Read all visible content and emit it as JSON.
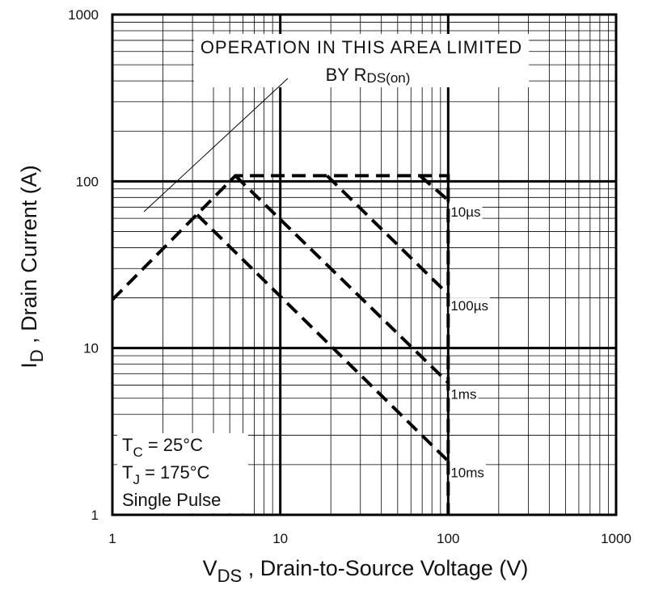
{
  "chart_data": {
    "type": "line",
    "log_x": true,
    "log_y": true,
    "grid": true,
    "minor_grid": true,
    "color": "#000000",
    "xlim": [
      1,
      1000
    ],
    "ylim": [
      1,
      1000
    ],
    "xticks": [
      1,
      10,
      100,
      1000
    ],
    "yticks": [
      1,
      10,
      100,
      1000
    ],
    "x_label": {
      "text": "V",
      "sub": "DS",
      "rest": " , Drain-to-Source Voltage (V)"
    },
    "y_label": {
      "text": "I",
      "sub": "D",
      "rest": " , Drain Current (A)"
    },
    "annotation": {
      "line1": "OPERATION IN THIS AREA LIMITED",
      "line2": "BY R",
      "sub": "DS(on)"
    },
    "conditions": [
      {
        "text": "T",
        "sub": "C",
        "rest": "  = 25°C"
      },
      {
        "text": "T",
        "sub": "J",
        "rest": "  = 175°C"
      },
      {
        "text": "Single Pulse"
      }
    ],
    "limit": {
      "x": [
        1,
        5.4,
        100,
        100
      ],
      "values": [
        19.5,
        108,
        108,
        1
      ]
    },
    "series": [
      {
        "name": "10µs",
        "color": "#000000",
        "x": [
          68,
          100
        ],
        "values": [
          108,
          77
        ]
      },
      {
        "name": "100µs",
        "color": "#000000",
        "x": [
          19,
          100
        ],
        "values": [
          108,
          21
        ]
      },
      {
        "name": "1ms",
        "color": "#000000",
        "x": [
          5.4,
          100
        ],
        "values": [
          108,
          6.2
        ]
      },
      {
        "name": "10ms",
        "color": "#000000",
        "x": [
          3.2,
          100
        ],
        "values": [
          63,
          2.1
        ]
      }
    ]
  }
}
